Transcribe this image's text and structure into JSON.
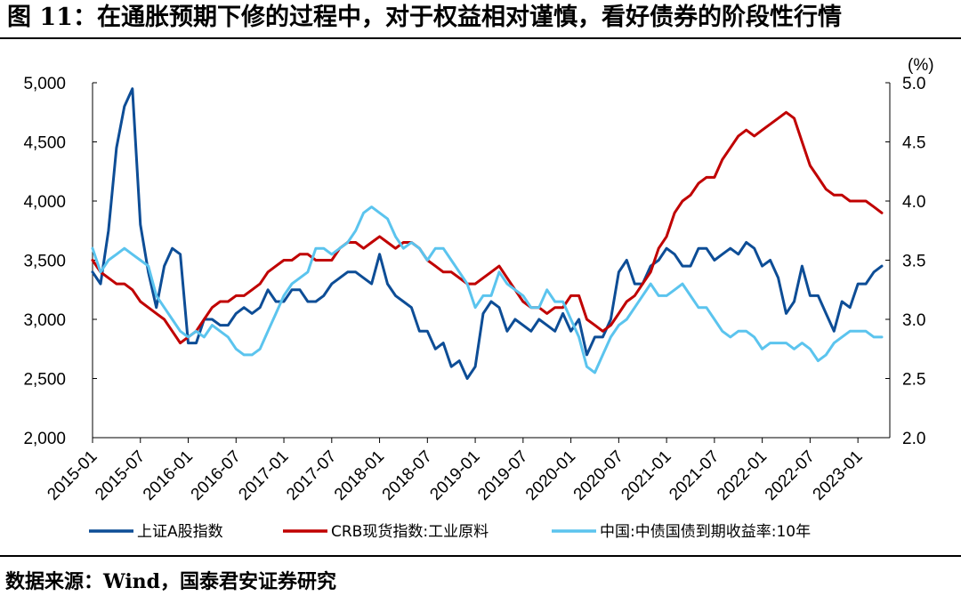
{
  "title": "图 11：在通胀预期下修的过程中，对于权益相对谨慎，看好债券的阶段性行情",
  "source": "数据来源：Wind，国泰君安证券研究",
  "chart_data": {
    "type": "line",
    "title": "",
    "xlabel": "",
    "ylabel": "",
    "y2label": "(%)",
    "xlim": [
      "2015-01",
      "2023-05"
    ],
    "ylim": [
      2000,
      5000
    ],
    "y2lim": [
      2.0,
      5.0
    ],
    "x_ticks": [
      "2015-01",
      "2015-07",
      "2016-01",
      "2016-07",
      "2017-01",
      "2017-07",
      "2018-01",
      "2018-07",
      "2019-01",
      "2019-07",
      "2020-01",
      "2020-07",
      "2021-01",
      "2021-07",
      "2022-01",
      "2022-07",
      "2023-01"
    ],
    "y_ticks": [
      "2,000",
      "2,500",
      "3,000",
      "3,500",
      "4,000",
      "4,500",
      "5,000"
    ],
    "y2_ticks": [
      "2.0",
      "2.5",
      "3.0",
      "3.5",
      "4.0",
      "4.5",
      "5.0"
    ],
    "grid": false,
    "legend_position": "bottom",
    "series": [
      {
        "name": "上证A股指数",
        "axis": "left",
        "color": "#0d4d96",
        "x": [
          "2015-01",
          "2015-02",
          "2015-03",
          "2015-04",
          "2015-05",
          "2015-06",
          "2015-07",
          "2015-08",
          "2015-09",
          "2015-10",
          "2015-11",
          "2015-12",
          "2016-01",
          "2016-02",
          "2016-03",
          "2016-04",
          "2016-05",
          "2016-06",
          "2016-07",
          "2016-08",
          "2016-09",
          "2016-10",
          "2016-11",
          "2016-12",
          "2017-01",
          "2017-02",
          "2017-03",
          "2017-04",
          "2017-05",
          "2017-06",
          "2017-07",
          "2017-08",
          "2017-09",
          "2017-10",
          "2017-11",
          "2017-12",
          "2018-01",
          "2018-02",
          "2018-03",
          "2018-04",
          "2018-05",
          "2018-06",
          "2018-07",
          "2018-08",
          "2018-09",
          "2018-10",
          "2018-11",
          "2018-12",
          "2019-01",
          "2019-02",
          "2019-03",
          "2019-04",
          "2019-05",
          "2019-06",
          "2019-07",
          "2019-08",
          "2019-09",
          "2019-10",
          "2019-11",
          "2019-12",
          "2020-01",
          "2020-02",
          "2020-03",
          "2020-04",
          "2020-05",
          "2020-06",
          "2020-07",
          "2020-08",
          "2020-09",
          "2020-10",
          "2020-11",
          "2020-12",
          "2021-01",
          "2021-02",
          "2021-03",
          "2021-04",
          "2021-05",
          "2021-06",
          "2021-07",
          "2021-08",
          "2021-09",
          "2021-10",
          "2021-11",
          "2021-12",
          "2022-01",
          "2022-02",
          "2022-03",
          "2022-04",
          "2022-05",
          "2022-06",
          "2022-07",
          "2022-08",
          "2022-09",
          "2022-10",
          "2022-11",
          "2022-12",
          "2023-01",
          "2023-02",
          "2023-03",
          "2023-04"
        ],
        "values": [
          3400,
          3300,
          3750,
          4450,
          4800,
          4950,
          3800,
          3400,
          3100,
          3450,
          3600,
          3550,
          2800,
          2800,
          3000,
          3000,
          2950,
          2950,
          3050,
          3100,
          3050,
          3100,
          3250,
          3150,
          3150,
          3250,
          3250,
          3150,
          3150,
          3200,
          3300,
          3350,
          3400,
          3400,
          3350,
          3300,
          3550,
          3300,
          3200,
          3150,
          3100,
          2900,
          2900,
          2750,
          2800,
          2600,
          2650,
          2500,
          2600,
          3050,
          3150,
          3100,
          2900,
          3000,
          2950,
          2900,
          3000,
          2950,
          2900,
          3050,
          2900,
          3000,
          2700,
          2850,
          2850,
          3000,
          3400,
          3500,
          3300,
          3300,
          3450,
          3500,
          3600,
          3550,
          3450,
          3450,
          3600,
          3600,
          3500,
          3550,
          3600,
          3550,
          3650,
          3600,
          3450,
          3500,
          3350,
          3050,
          3150,
          3450,
          3200,
          3200,
          3050,
          2900,
          3150,
          3100,
          3300,
          3300,
          3400,
          3450
        ]
      },
      {
        "name": "CRB现货指数:工业原料",
        "axis": "left",
        "color": "#c00000",
        "x": [
          "2015-01",
          "2015-02",
          "2015-03",
          "2015-04",
          "2015-05",
          "2015-06",
          "2015-07",
          "2015-08",
          "2015-09",
          "2015-10",
          "2015-11",
          "2015-12",
          "2016-01",
          "2016-02",
          "2016-03",
          "2016-04",
          "2016-05",
          "2016-06",
          "2016-07",
          "2016-08",
          "2016-09",
          "2016-10",
          "2016-11",
          "2016-12",
          "2017-01",
          "2017-02",
          "2017-03",
          "2017-04",
          "2017-05",
          "2017-06",
          "2017-07",
          "2017-08",
          "2017-09",
          "2017-10",
          "2017-11",
          "2017-12",
          "2018-01",
          "2018-02",
          "2018-03",
          "2018-04",
          "2018-05",
          "2018-06",
          "2018-07",
          "2018-08",
          "2018-09",
          "2018-10",
          "2018-11",
          "2018-12",
          "2019-01",
          "2019-02",
          "2019-03",
          "2019-04",
          "2019-05",
          "2019-06",
          "2019-07",
          "2019-08",
          "2019-09",
          "2019-10",
          "2019-11",
          "2019-12",
          "2020-01",
          "2020-02",
          "2020-03",
          "2020-04",
          "2020-05",
          "2020-06",
          "2020-07",
          "2020-08",
          "2020-09",
          "2020-10",
          "2020-11",
          "2020-12",
          "2021-01",
          "2021-02",
          "2021-03",
          "2021-04",
          "2021-05",
          "2021-06",
          "2021-07",
          "2021-08",
          "2021-09",
          "2021-10",
          "2021-11",
          "2021-12",
          "2022-01",
          "2022-02",
          "2022-03",
          "2022-04",
          "2022-05",
          "2022-06",
          "2022-07",
          "2022-08",
          "2022-09",
          "2022-10",
          "2022-11",
          "2022-12",
          "2023-01",
          "2023-02",
          "2023-03",
          "2023-04"
        ],
        "values": [
          3500,
          3400,
          3350,
          3300,
          3300,
          3250,
          3150,
          3100,
          3050,
          3000,
          2900,
          2800,
          2850,
          2900,
          3000,
          3100,
          3150,
          3150,
          3200,
          3200,
          3250,
          3300,
          3400,
          3450,
          3500,
          3500,
          3550,
          3550,
          3500,
          3500,
          3500,
          3600,
          3650,
          3650,
          3600,
          3650,
          3700,
          3650,
          3600,
          3650,
          3650,
          3600,
          3500,
          3450,
          3400,
          3400,
          3350,
          3300,
          3300,
          3350,
          3400,
          3450,
          3350,
          3250,
          3150,
          3100,
          3100,
          3050,
          3100,
          3100,
          3200,
          3200,
          3000,
          2950,
          2900,
          2950,
          3050,
          3150,
          3200,
          3300,
          3400,
          3600,
          3700,
          3900,
          4000,
          4050,
          4150,
          4200,
          4200,
          4350,
          4450,
          4550,
          4600,
          4550,
          4600,
          4650,
          4700,
          4750,
          4700,
          4500,
          4300,
          4200,
          4100,
          4050,
          4050,
          4000,
          4000,
          4000,
          3950,
          3900
        ]
      },
      {
        "name": "中国:中债国债到期收益率:10年",
        "axis": "right",
        "color": "#5bc4ee",
        "x": [
          "2015-01",
          "2015-02",
          "2015-03",
          "2015-04",
          "2015-05",
          "2015-06",
          "2015-07",
          "2015-08",
          "2015-09",
          "2015-10",
          "2015-11",
          "2015-12",
          "2016-01",
          "2016-02",
          "2016-03",
          "2016-04",
          "2016-05",
          "2016-06",
          "2016-07",
          "2016-08",
          "2016-09",
          "2016-10",
          "2016-11",
          "2016-12",
          "2017-01",
          "2017-02",
          "2017-03",
          "2017-04",
          "2017-05",
          "2017-06",
          "2017-07",
          "2017-08",
          "2017-09",
          "2017-10",
          "2017-11",
          "2017-12",
          "2018-01",
          "2018-02",
          "2018-03",
          "2018-04",
          "2018-05",
          "2018-06",
          "2018-07",
          "2018-08",
          "2018-09",
          "2018-10",
          "2018-11",
          "2018-12",
          "2019-01",
          "2019-02",
          "2019-03",
          "2019-04",
          "2019-05",
          "2019-06",
          "2019-07",
          "2019-08",
          "2019-09",
          "2019-10",
          "2019-11",
          "2019-12",
          "2020-01",
          "2020-02",
          "2020-03",
          "2020-04",
          "2020-05",
          "2020-06",
          "2020-07",
          "2020-08",
          "2020-09",
          "2020-10",
          "2020-11",
          "2020-12",
          "2021-01",
          "2021-02",
          "2021-03",
          "2021-04",
          "2021-05",
          "2021-06",
          "2021-07",
          "2021-08",
          "2021-09",
          "2021-10",
          "2021-11",
          "2021-12",
          "2022-01",
          "2022-02",
          "2022-03",
          "2022-04",
          "2022-05",
          "2022-06",
          "2022-07",
          "2022-08",
          "2022-09",
          "2022-10",
          "2022-11",
          "2022-12",
          "2023-01",
          "2023-02",
          "2023-03",
          "2023-04"
        ],
        "values": [
          3.6,
          3.4,
          3.5,
          3.55,
          3.6,
          3.55,
          3.5,
          3.45,
          3.2,
          3.1,
          3.0,
          2.9,
          2.85,
          2.9,
          2.85,
          2.95,
          2.9,
          2.85,
          2.75,
          2.7,
          2.7,
          2.75,
          2.9,
          3.05,
          3.2,
          3.3,
          3.35,
          3.4,
          3.6,
          3.6,
          3.55,
          3.6,
          3.65,
          3.75,
          3.9,
          3.95,
          3.9,
          3.85,
          3.7,
          3.6,
          3.65,
          3.6,
          3.5,
          3.6,
          3.6,
          3.5,
          3.4,
          3.3,
          3.1,
          3.2,
          3.2,
          3.4,
          3.3,
          3.25,
          3.2,
          3.1,
          3.1,
          3.25,
          3.15,
          3.15,
          3.0,
          2.85,
          2.6,
          2.55,
          2.7,
          2.85,
          2.95,
          3.0,
          3.1,
          3.2,
          3.3,
          3.2,
          3.2,
          3.25,
          3.3,
          3.2,
          3.1,
          3.1,
          3.0,
          2.9,
          2.85,
          2.9,
          2.9,
          2.85,
          2.75,
          2.8,
          2.8,
          2.8,
          2.75,
          2.8,
          2.75,
          2.65,
          2.7,
          2.8,
          2.85,
          2.9,
          2.9,
          2.9,
          2.85,
          2.85
        ]
      }
    ]
  }
}
